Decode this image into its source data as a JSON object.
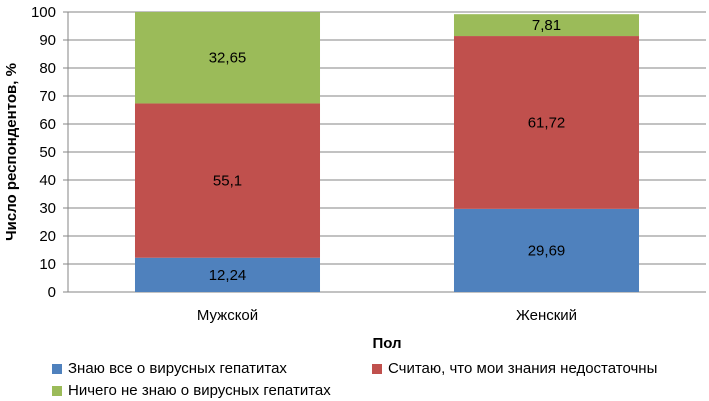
{
  "chart_data": {
    "type": "bar",
    "stacked": true,
    "categories": [
      "Мужской",
      "Женский"
    ],
    "series": [
      {
        "name": "Знаю все о вирусных гепатитах",
        "values": [
          12.24,
          29.69
        ],
        "labels": [
          "12,24",
          "29,69"
        ],
        "color": "#4f81bd"
      },
      {
        "name": "Считаю, что мои знания недостаточны",
        "values": [
          55.1,
          61.72
        ],
        "labels": [
          "55,1",
          "61,72"
        ],
        "color": "#c0504d"
      },
      {
        "name": "Ничего не знаю о вирусных гепатитах",
        "values": [
          32.65,
          7.81
        ],
        "labels": [
          "32,65",
          "7,81"
        ],
        "color": "#9bbb59"
      }
    ],
    "xlabel": "Пол",
    "ylabel": "Число респондентов, %",
    "ylim": [
      0,
      100
    ],
    "yticks": [
      0,
      10,
      20,
      30,
      40,
      50,
      60,
      70,
      80,
      90,
      100
    ],
    "grid": true,
    "legend_position": "bottom"
  }
}
